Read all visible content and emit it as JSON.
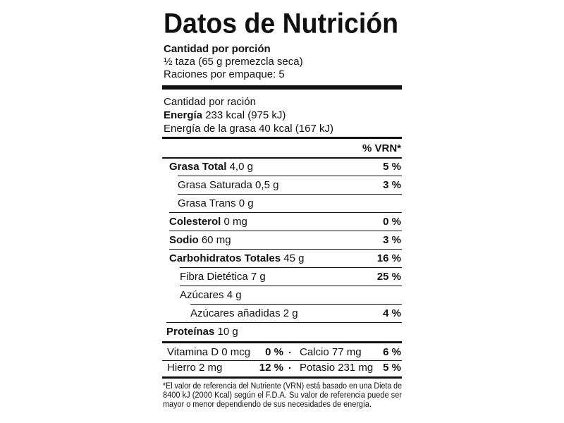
{
  "title": "Datos de Nutrición",
  "serving": {
    "heading": "Cantidad por porción",
    "size": "½ taza (65 g premezcla seca)",
    "servings": "Raciones por empaque: 5"
  },
  "amount": {
    "heading": "Cantidad por ración",
    "energy_label": "Energía",
    "energy_value": "233 kcal (975 kJ)",
    "fat_energy": "Energía de la grasa 40 kcal (167 kJ)"
  },
  "dv_header": "% VRN*",
  "rows": [
    {
      "name": "Grasa Total",
      "amount": "4,0 g",
      "dv": "5 %"
    },
    {
      "name": "Grasa Saturada 0,5 g",
      "dv": "3 %"
    },
    {
      "name": "Grasa Trans 0 g"
    },
    {
      "name": "Colesterol",
      "amount": "0 mg",
      "dv": "0 %"
    },
    {
      "name": "Sodio",
      "amount": "60 mg",
      "dv": "3 %"
    },
    {
      "name": "Carbohidratos Totales",
      "amount": "45 g",
      "dv": "16 %"
    },
    {
      "name": "Fibra Dietética  7 g",
      "dv": "25 %"
    },
    {
      "name": "Azúcares 4 g"
    },
    {
      "name": "Azúcares añadidas 2 g",
      "dv": "4 %"
    },
    {
      "name": "Proteínas",
      "amount": "10 g"
    }
  ],
  "vitamins": [
    [
      {
        "name": "Vitamina D 0 mcg",
        "dv": "0 %"
      },
      {
        "name": "Calcio 77 mg",
        "dv": "6 %"
      }
    ],
    [
      {
        "name": "Hierro 2 mg",
        "dv": "12 %"
      },
      {
        "name": "Potasio 231 mg",
        "dv": "5 %"
      }
    ]
  ],
  "footnote": [
    "*El valor de referencia del Nutriente (VRN) está basado en una Dieta de",
    "8400 kJ (2000 Kcal) según el F.D.A. Su valor de referencia puede ser",
    "mayor o menor dependiendo de sus necesidades de energía."
  ]
}
